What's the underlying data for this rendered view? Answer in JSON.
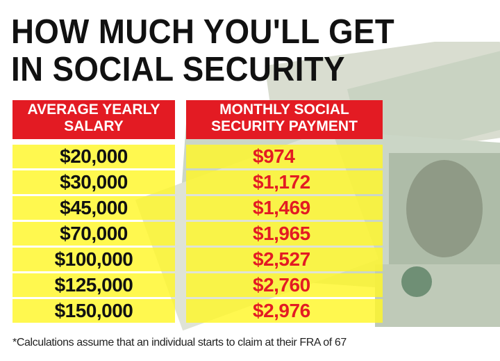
{
  "title_lines": [
    "HOW MUCH YOU'LL GET",
    "IN SOCIAL SECURITY"
  ],
  "chart_data": {
    "type": "table",
    "columns": [
      {
        "header": [
          "AVERAGE YEARLY",
          "SALARY"
        ]
      },
      {
        "header": [
          "MONTHLY SOCIAL",
          "SECURITY PAYMENT"
        ]
      }
    ],
    "rows": [
      [
        "$20,000",
        "$974"
      ],
      [
        "$30,000",
        "$1,172"
      ],
      [
        "$45,000",
        "$1,469"
      ],
      [
        "$70,000",
        "$1,965"
      ],
      [
        "$100,000",
        "$2,527"
      ],
      [
        "$125,000",
        "$2,760"
      ],
      [
        "$150,000",
        "$2,976"
      ]
    ]
  },
  "footnote": "*Calculations assume that an individual starts to claim at their FRA of 67",
  "colors": {
    "header_bg": "#e31b23",
    "row_bg": "#fff728",
    "payment_text": "#e31b23"
  },
  "background_image": "us-dollar-bills"
}
